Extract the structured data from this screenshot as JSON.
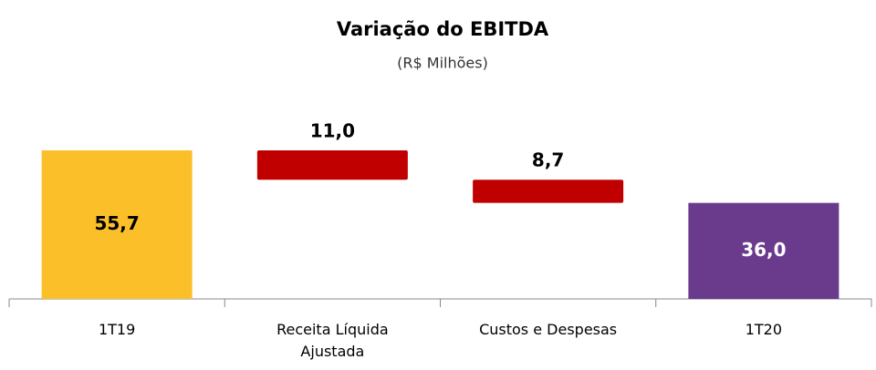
{
  "chart_data": {
    "type": "waterfall",
    "title": "Variação do EBITDA",
    "subtitle": "(R$ Milhões)",
    "categories": [
      "1T19",
      "Receita Líquida Ajustada",
      "Custos e Despesas",
      "1T20"
    ],
    "values": [
      55.7,
      -11.0,
      -8.7,
      36.0
    ],
    "value_labels": [
      "55,7",
      "11,0",
      "8,7",
      "36,0"
    ],
    "measure": [
      "absolute",
      "relative",
      "relative",
      "absolute"
    ],
    "colors": [
      "#fbbf2a",
      "#c00000",
      "#c00000",
      "#6a3a8c"
    ],
    "label_colors": [
      "#000000",
      "#000000",
      "#000000",
      "#ffffff"
    ]
  }
}
